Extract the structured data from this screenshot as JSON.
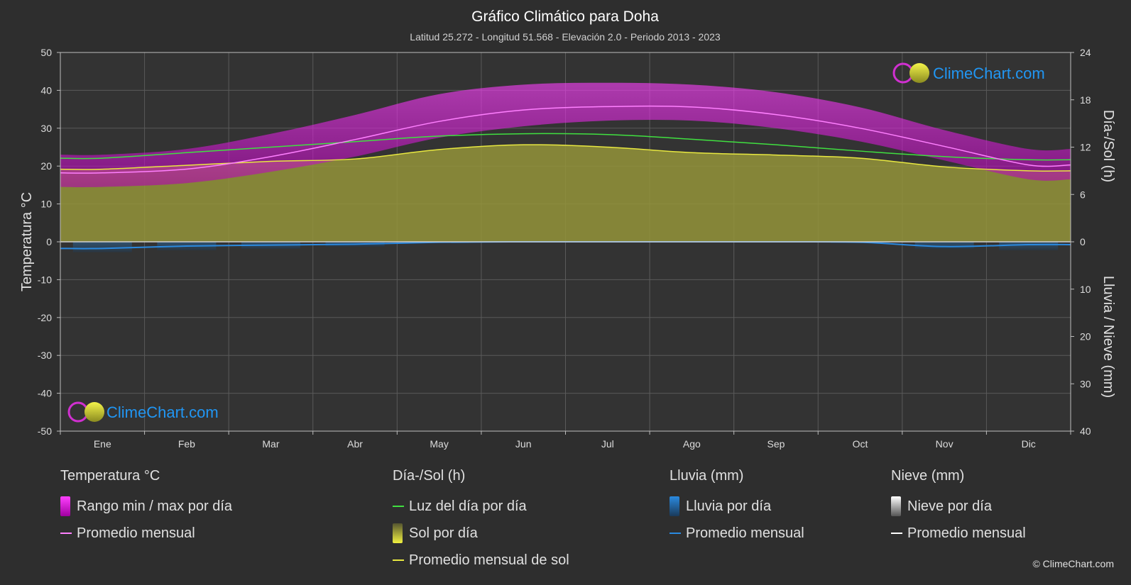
{
  "header": {
    "title": "Gráfico Climático para Doha",
    "subtitle": "Latitud 25.272 - Longitud 51.568 - Elevación 2.0 - Periodo 2013 - 2023"
  },
  "brand": {
    "logo_text": "ClimeChart.com",
    "copyright": "© ClimeChart.com"
  },
  "colors": {
    "background": "#2e2e2e",
    "temp_range": "#e020e0",
    "temp_avg": "#ff80ff",
    "daylight": "#40e040",
    "sunshine_fill": "#9a9a30",
    "sunshine_avg": "#e8e840",
    "rain": "#2a8ae0",
    "brand_blue": "#2196f3"
  },
  "chart_data": {
    "type": "area",
    "categories": [
      "Ene",
      "Feb",
      "Mar",
      "Abr",
      "May",
      "Jun",
      "Jul",
      "Ago",
      "Sep",
      "Oct",
      "Nov",
      "Dic"
    ],
    "axes": {
      "left": {
        "label": "Temperatura °C",
        "min": -50,
        "max": 50,
        "ticks": [
          50,
          40,
          30,
          20,
          10,
          0,
          -10,
          -20,
          -30,
          -40,
          -50
        ]
      },
      "right_top": {
        "label": "Día-/Sol (h)",
        "min": 0,
        "max": 24,
        "ticks": [
          24,
          18,
          12,
          6,
          0
        ]
      },
      "right_bottom": {
        "label": "Lluvia / Nieve (mm)",
        "min": 0,
        "max": 40,
        "ticks": [
          10,
          20,
          30,
          40
        ]
      }
    },
    "grid": true,
    "series": [
      {
        "name": "Rango min / max por día",
        "type": "range",
        "axis": "temperature",
        "min": [
          14.5,
          15.5,
          18.5,
          22.5,
          27.5,
          30.5,
          32,
          32,
          30,
          26.5,
          21.5,
          16.5
        ],
        "max": [
          23,
          24.5,
          28.5,
          33.5,
          39,
          41.5,
          42,
          41.5,
          39.5,
          35.5,
          29.5,
          24.5
        ]
      },
      {
        "name": "Promedio mensual",
        "type": "line",
        "axis": "temperature",
        "values": [
          18.2,
          19.2,
          22.5,
          27.0,
          31.8,
          34.8,
          35.7,
          35.6,
          33.6,
          30.0,
          25.2,
          20.3
        ]
      },
      {
        "name": "Luz del día por día",
        "type": "line",
        "axis": "hours",
        "values": [
          10.6,
          11.3,
          12.0,
          12.7,
          13.4,
          13.7,
          13.6,
          13.0,
          12.3,
          11.5,
          10.8,
          10.4
        ]
      },
      {
        "name": "Sol por día",
        "type": "area",
        "axis": "hours",
        "values": [
          9.2,
          9.7,
          10.2,
          10.5,
          11.7,
          12.3,
          12.0,
          11.3,
          11.0,
          10.6,
          9.5,
          9.0
        ]
      },
      {
        "name": "Promedio mensual de sol",
        "type": "line",
        "axis": "hours",
        "values": [
          9.2,
          9.7,
          10.2,
          10.5,
          11.7,
          12.3,
          12.0,
          11.3,
          11.0,
          10.6,
          9.5,
          9.0
        ]
      },
      {
        "name": "Lluvia por día",
        "type": "bar",
        "axis": "precip",
        "values": [
          2.2,
          1.8,
          1.5,
          1.0,
          0.3,
          0.0,
          0.0,
          0.0,
          0.0,
          0.3,
          1.5,
          1.8
        ]
      },
      {
        "name": "Promedio mensual",
        "type": "line",
        "axis": "precip",
        "values": [
          1.4,
          0.9,
          0.7,
          0.5,
          0.1,
          0.0,
          0.0,
          0.0,
          0.0,
          0.1,
          1.0,
          0.6
        ]
      }
    ]
  },
  "legend": {
    "temperature": {
      "title": "Temperatura °C",
      "items": [
        "Rango min / max por día",
        "Promedio mensual"
      ]
    },
    "sun": {
      "title": "Día-/Sol (h)",
      "items": [
        "Luz del día por día",
        "Sol por día",
        "Promedio mensual de sol"
      ]
    },
    "rain": {
      "title": "Lluvia (mm)",
      "items": [
        "Lluvia por día",
        "Promedio mensual"
      ]
    },
    "snow": {
      "title": "Nieve (mm)",
      "items": [
        "Nieve por día",
        "Promedio mensual"
      ]
    }
  }
}
